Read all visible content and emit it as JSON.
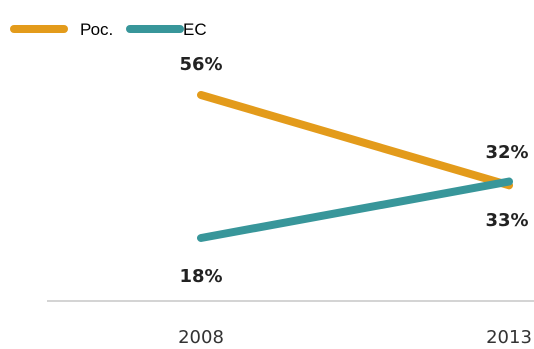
{
  "chart_data": {
    "type": "line",
    "categories": [
      "2008",
      "2013"
    ],
    "series": [
      {
        "name": "Рос.",
        "values": [
          56,
          32
        ],
        "labels": [
          "56%",
          "32%"
        ],
        "color": "#E39B1B"
      },
      {
        "name": "ЕС",
        "values": [
          18,
          33
        ],
        "labels": [
          "18%",
          "33%"
        ],
        "color": "#38969A"
      }
    ],
    "title": "",
    "xlabel": "",
    "ylabel": "",
    "ylim": [
      0,
      65
    ],
    "grid": false,
    "legend": "top-left"
  }
}
